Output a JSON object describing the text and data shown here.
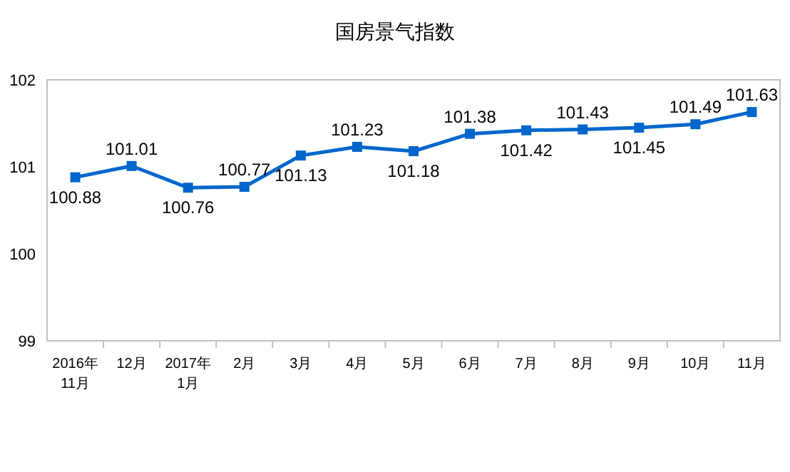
{
  "chart_data": {
    "type": "line",
    "title": "国房景气指数",
    "categories": [
      "2016年\n11月",
      "12月",
      "2017年\n1月",
      "2月",
      "3月",
      "4月",
      "5月",
      "6月",
      "7月",
      "8月",
      "9月",
      "10月",
      "11月"
    ],
    "series": [
      {
        "color": "#0066cc",
        "values": [
          100.88,
          101.01,
          100.76,
          100.77,
          101.13,
          101.23,
          101.18,
          101.38,
          101.42,
          101.43,
          101.45,
          101.49,
          101.63
        ]
      }
    ],
    "ylim": [
      99,
      102
    ],
    "yticks": [
      99,
      100,
      101,
      102
    ],
    "data_labels": true,
    "marker": "square"
  }
}
